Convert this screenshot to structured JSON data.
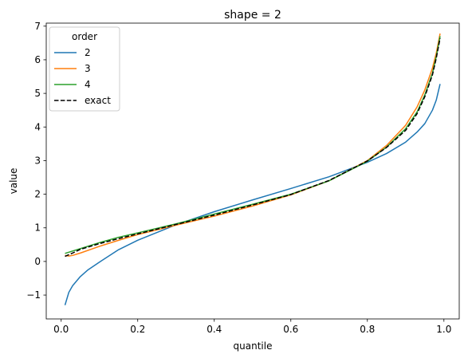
{
  "chart_data": {
    "type": "line",
    "title": "shape = 2",
    "xlabel": "quantile",
    "ylabel": "value",
    "xlim": [
      -0.039,
      1.04
    ],
    "ylim": [
      -1.71,
      7.09
    ],
    "xticks": [
      0.0,
      0.2,
      0.4,
      0.6,
      0.8,
      1.0
    ],
    "xtick_labels": [
      "0.0",
      "0.2",
      "0.4",
      "0.6",
      "0.8",
      "1.0"
    ],
    "yticks": [
      -1,
      0,
      1,
      2,
      3,
      4,
      5,
      6,
      7
    ],
    "ytick_labels": [
      "−1",
      "0",
      "1",
      "2",
      "3",
      "4",
      "5",
      "6",
      "7"
    ],
    "grid": false,
    "legend": {
      "title": "order",
      "placement": "upper-left"
    },
    "series": [
      {
        "name": "2",
        "color": "#1f77b4",
        "style": "solid",
        "x": [
          0.01,
          0.02,
          0.03,
          0.05,
          0.07,
          0.1,
          0.15,
          0.2,
          0.3,
          0.4,
          0.5,
          0.6,
          0.7,
          0.8,
          0.85,
          0.9,
          0.93,
          0.95,
          0.97,
          0.98,
          0.99
        ],
        "y": [
          -1.3,
          -0.92,
          -0.72,
          -0.45,
          -0.25,
          -0.02,
          0.35,
          0.63,
          1.09,
          1.48,
          1.83,
          2.17,
          2.52,
          2.95,
          3.21,
          3.55,
          3.85,
          4.1,
          4.5,
          4.8,
          5.28
        ]
      },
      {
        "name": "3",
        "color": "#ff7f0e",
        "style": "solid",
        "x": [
          0.01,
          0.02,
          0.03,
          0.05,
          0.1,
          0.15,
          0.2,
          0.3,
          0.4,
          0.5,
          0.6,
          0.7,
          0.8,
          0.85,
          0.9,
          0.93,
          0.95,
          0.97,
          0.98,
          0.99
        ],
        "y": [
          0.18,
          0.16,
          0.18,
          0.25,
          0.45,
          0.63,
          0.8,
          1.08,
          1.35,
          1.65,
          1.98,
          2.4,
          3.0,
          3.45,
          4.05,
          4.6,
          5.1,
          5.75,
          6.2,
          6.78
        ]
      },
      {
        "name": "4",
        "color": "#2ca02c",
        "style": "solid",
        "x": [
          0.01,
          0.05,
          0.1,
          0.15,
          0.2,
          0.3,
          0.4,
          0.5,
          0.6,
          0.7,
          0.8,
          0.85,
          0.9,
          0.93,
          0.95,
          0.97,
          0.98,
          0.99
        ],
        "y": [
          0.24,
          0.38,
          0.56,
          0.72,
          0.85,
          1.12,
          1.41,
          1.7,
          2.0,
          2.4,
          2.98,
          3.4,
          3.95,
          4.45,
          4.95,
          5.6,
          6.1,
          6.7
        ]
      },
      {
        "name": "exact",
        "color": "#000000",
        "style": "dashed",
        "x": [
          0.01,
          0.03,
          0.05,
          0.1,
          0.15,
          0.2,
          0.3,
          0.4,
          0.5,
          0.6,
          0.7,
          0.8,
          0.85,
          0.9,
          0.93,
          0.95,
          0.97,
          0.98,
          0.99
        ],
        "y": [
          0.15,
          0.25,
          0.36,
          0.53,
          0.68,
          0.82,
          1.1,
          1.38,
          1.68,
          1.99,
          2.41,
          2.99,
          3.39,
          3.9,
          4.4,
          4.9,
          5.55,
          6.05,
          6.64
        ]
      }
    ]
  }
}
